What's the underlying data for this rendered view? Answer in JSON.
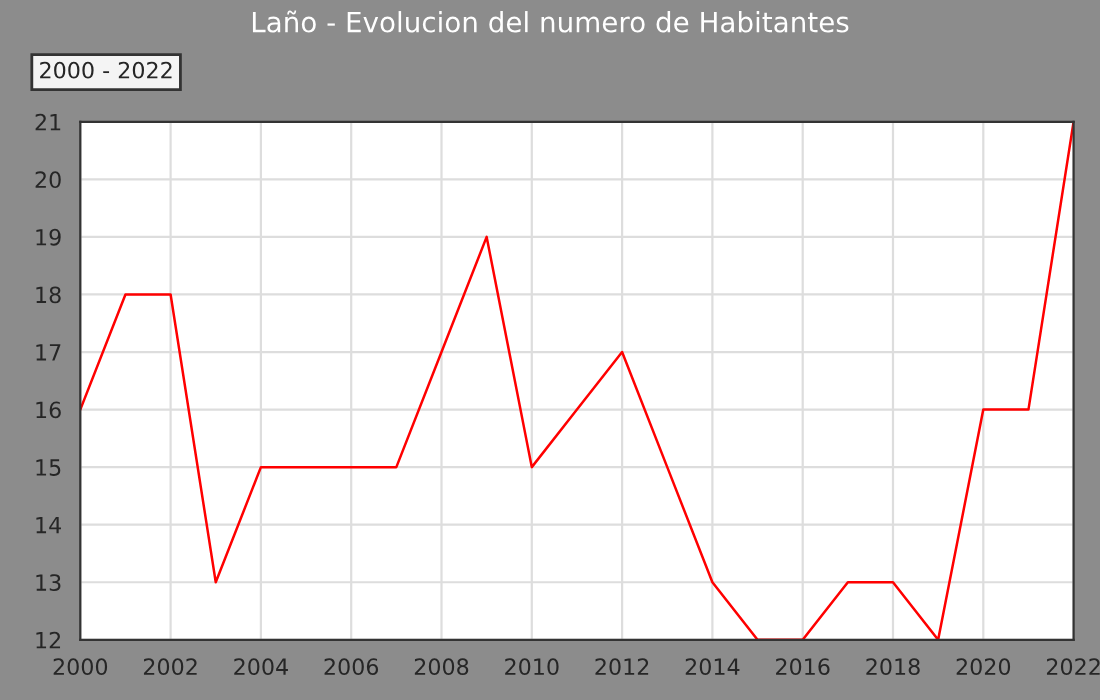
{
  "chart_data": {
    "type": "line",
    "title": "Laño - Evolucion del numero de Habitantes",
    "annotations": [
      "2000 - 2022"
    ],
    "x": [
      2000,
      2001,
      2002,
      2003,
      2004,
      2005,
      2006,
      2007,
      2008,
      2009,
      2010,
      2011,
      2012,
      2013,
      2014,
      2015,
      2016,
      2017,
      2018,
      2019,
      2020,
      2021,
      2022
    ],
    "series": [
      {
        "color": "#ff0000",
        "values": [
          16,
          18,
          18,
          13,
          15,
          15,
          15,
          15,
          17,
          19,
          15,
          16,
          17,
          15,
          13,
          12,
          12,
          13,
          13,
          12,
          16,
          16,
          21
        ]
      }
    ],
    "xlim": [
      2000,
      2022
    ],
    "xticks": [
      2000,
      2002,
      2004,
      2006,
      2008,
      2010,
      2012,
      2014,
      2016,
      2018,
      2020,
      2022
    ],
    "ylim": [
      12,
      21
    ],
    "yticks": [
      12,
      13,
      14,
      15,
      16,
      17,
      18,
      19,
      20,
      21
    ],
    "grid": true,
    "marker": "none",
    "line_style": "solid",
    "legend": false
  }
}
